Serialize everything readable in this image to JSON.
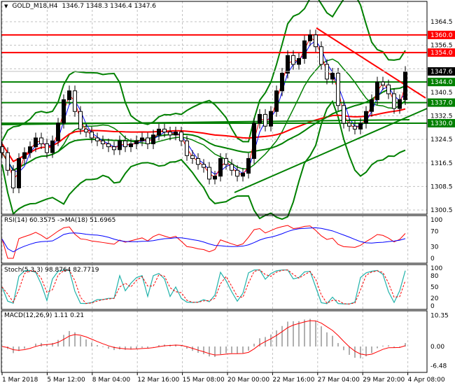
{
  "header": {
    "symbol": "GOLD_M18,H4",
    "ohlc": "1346.7 1348.3 1346.4 1347.6",
    "menu_icon": "triangle-down-icon"
  },
  "colors": {
    "bull": "#000000",
    "support": "#008000",
    "resistance": "#ff0000",
    "ma_fast": "#0000ff",
    "ma_slow": "#ff0000"
  },
  "chart_data": [
    {
      "type": "candlestick",
      "title": "GOLD_M18,H4",
      "ylim": [
        1300.5,
        1364.5
      ],
      "price_ticks": [
        1364.5,
        1356.5,
        1340.5,
        1332.5,
        1324.5,
        1316.5,
        1308.5,
        1300.5
      ],
      "closes": [
        1320,
        1314,
        1308,
        1318,
        1320,
        1322,
        1325,
        1323,
        1320,
        1324,
        1330,
        1338,
        1341,
        1334,
        1328,
        1327,
        1325,
        1324,
        1323,
        1322,
        1321,
        1324,
        1322,
        1323,
        1324,
        1325,
        1323,
        1326,
        1328,
        1327,
        1326,
        1327,
        1324,
        1319,
        1318,
        1316,
        1315,
        1311,
        1312,
        1318,
        1316,
        1314,
        1312,
        1313,
        1318,
        1330,
        1333,
        1329,
        1334,
        1341,
        1347,
        1353,
        1350,
        1352,
        1358,
        1360,
        1356,
        1350,
        1345,
        1347,
        1336,
        1330,
        1329,
        1328,
        1330,
        1334,
        1338,
        1344,
        1343,
        1340,
        1335,
        1338,
        1347.6
      ],
      "levels": [
        {
          "value": 1360.0,
          "label": "1360.0",
          "kind": "resistance"
        },
        {
          "value": 1354.0,
          "label": "1354.0",
          "kind": "resistance"
        },
        {
          "value": 1344.0,
          "label": "1344.0",
          "kind": "support"
        },
        {
          "value": 1337.0,
          "label": "1337.0",
          "kind": "support"
        },
        {
          "value": 1330.0,
          "label": "1330.0",
          "kind": "support"
        }
      ],
      "current_price": "1347.6",
      "x_ticks": [
        "1 Mar 2018",
        "5 Mar 12:00",
        "8 Mar 04:00",
        "12 Mar 16:00",
        "15 Mar 08:00",
        "20 Mar 00:00",
        "22 Mar 16:00",
        "27 Mar 04:00",
        "29 Mar 20:00",
        "4 Apr 08:00"
      ]
    },
    {
      "type": "line",
      "title": "RSI(14) 60.3575  ->MA(18) 51.6965",
      "ylim": [
        0,
        100
      ],
      "ticks": [
        "100",
        "70",
        "30",
        "0"
      ]
    },
    {
      "type": "line",
      "title": "Stoch(5,3,3) 98.8764 82.7719",
      "ylim": [
        0,
        100
      ],
      "ticks": [
        "100",
        "80",
        "50",
        "20",
        "0"
      ]
    },
    {
      "type": "bar+line",
      "title": "MACD(12,26,9) 1.11 0.21",
      "ylim": [
        -6.48,
        10.35
      ],
      "ticks": [
        "10.35",
        "0.00",
        "-6.48"
      ]
    }
  ]
}
